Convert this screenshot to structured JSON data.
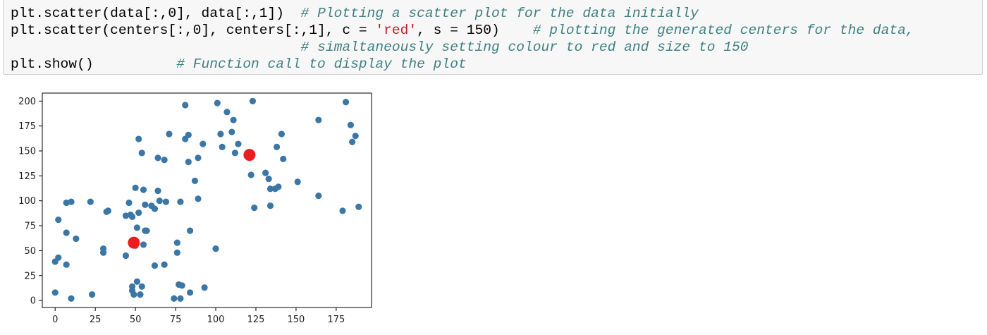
{
  "code_cell": {
    "lines": [
      {
        "code": "plt.scatter(data[:,0], data[:,1])  ",
        "comment": "# Plotting a scatter plot for the data initially"
      },
      {
        "code_pre": "plt.scatter(centers[:,0], centers[:,1], c = ",
        "string": "'red'",
        "code_post": ", s = 150)    ",
        "comment": "# plotting the generated centers for the data,"
      },
      {
        "code": "                                   ",
        "comment": "# simaltaneously setting colour to red and size to 150"
      },
      {
        "code": "plt.show()          ",
        "comment": "# Function call to display the plot"
      }
    ]
  },
  "colors": {
    "points": "#3a77a6",
    "centers": "#ee1c1c",
    "code_bg": "#f7f7f7",
    "comment": "#408080"
  },
  "chart_data": {
    "type": "scatter",
    "title": "",
    "xlabel": "",
    "ylabel": "",
    "xlim": [
      -8,
      197
    ],
    "ylim": [
      -7,
      208
    ],
    "xticks": [
      0,
      25,
      50,
      75,
      100,
      125,
      150,
      175
    ],
    "yticks": [
      0,
      25,
      50,
      75,
      100,
      125,
      150,
      175,
      200
    ],
    "grid": false,
    "series": [
      {
        "color": "#3a77a6",
        "points": [
          [
            0,
            8
          ],
          [
            0,
            39
          ],
          [
            2,
            43
          ],
          [
            2,
            81
          ],
          [
            7,
            98
          ],
          [
            7,
            36
          ],
          [
            7,
            68
          ],
          [
            10,
            99
          ],
          [
            10,
            2
          ],
          [
            13,
            62
          ],
          [
            22,
            99
          ],
          [
            23,
            6
          ],
          [
            30,
            52
          ],
          [
            30,
            48
          ],
          [
            32,
            89
          ],
          [
            33,
            90
          ],
          [
            44,
            45
          ],
          [
            44,
            85
          ],
          [
            46,
            98
          ],
          [
            47,
            86
          ],
          [
            48,
            84
          ],
          [
            48,
            14
          ],
          [
            48,
            10
          ],
          [
            49,
            6
          ],
          [
            50,
            113
          ],
          [
            50,
            55
          ],
          [
            51,
            73
          ],
          [
            51,
            19
          ],
          [
            52,
            162
          ],
          [
            52,
            88
          ],
          [
            53,
            6
          ],
          [
            54,
            148
          ],
          [
            54,
            14
          ],
          [
            55,
            111
          ],
          [
            55,
            56
          ],
          [
            56,
            70
          ],
          [
            56,
            96
          ],
          [
            57,
            70
          ],
          [
            60,
            95
          ],
          [
            62,
            92
          ],
          [
            62,
            35
          ],
          [
            64,
            143
          ],
          [
            64,
            110
          ],
          [
            65,
            100
          ],
          [
            68,
            141
          ],
          [
            68,
            36
          ],
          [
            69,
            99
          ],
          [
            71,
            167
          ],
          [
            74,
            2
          ],
          [
            76,
            58
          ],
          [
            76,
            48
          ],
          [
            77,
            16
          ],
          [
            78,
            99
          ],
          [
            78,
            2
          ],
          [
            79,
            15
          ],
          [
            81,
            196
          ],
          [
            81,
            162
          ],
          [
            83,
            166
          ],
          [
            83,
            139
          ],
          [
            84,
            70
          ],
          [
            84,
            8
          ],
          [
            87,
            120
          ],
          [
            89,
            143
          ],
          [
            89,
            102
          ],
          [
            92,
            157
          ],
          [
            93,
            13
          ],
          [
            100,
            52
          ],
          [
            101,
            198
          ],
          [
            103,
            167
          ],
          [
            104,
            154
          ],
          [
            107,
            189
          ],
          [
            110,
            169
          ],
          [
            111,
            181
          ],
          [
            112,
            148
          ],
          [
            114,
            157
          ],
          [
            122,
            126
          ],
          [
            123,
            200
          ],
          [
            124,
            93
          ],
          [
            131,
            128
          ],
          [
            133,
            122
          ],
          [
            134,
            95
          ],
          [
            134,
            112
          ],
          [
            137,
            112
          ],
          [
            138,
            154
          ],
          [
            139,
            114
          ],
          [
            141,
            167
          ],
          [
            142,
            142
          ],
          [
            151,
            119
          ],
          [
            164,
            181
          ],
          [
            164,
            105
          ],
          [
            179,
            90
          ],
          [
            181,
            199
          ],
          [
            184,
            176
          ],
          [
            185,
            159
          ],
          [
            187,
            165
          ],
          [
            189,
            94
          ]
        ]
      },
      {
        "color": "#ee1c1c",
        "points": [
          [
            49,
            58
          ],
          [
            121,
            146
          ]
        ]
      }
    ]
  }
}
